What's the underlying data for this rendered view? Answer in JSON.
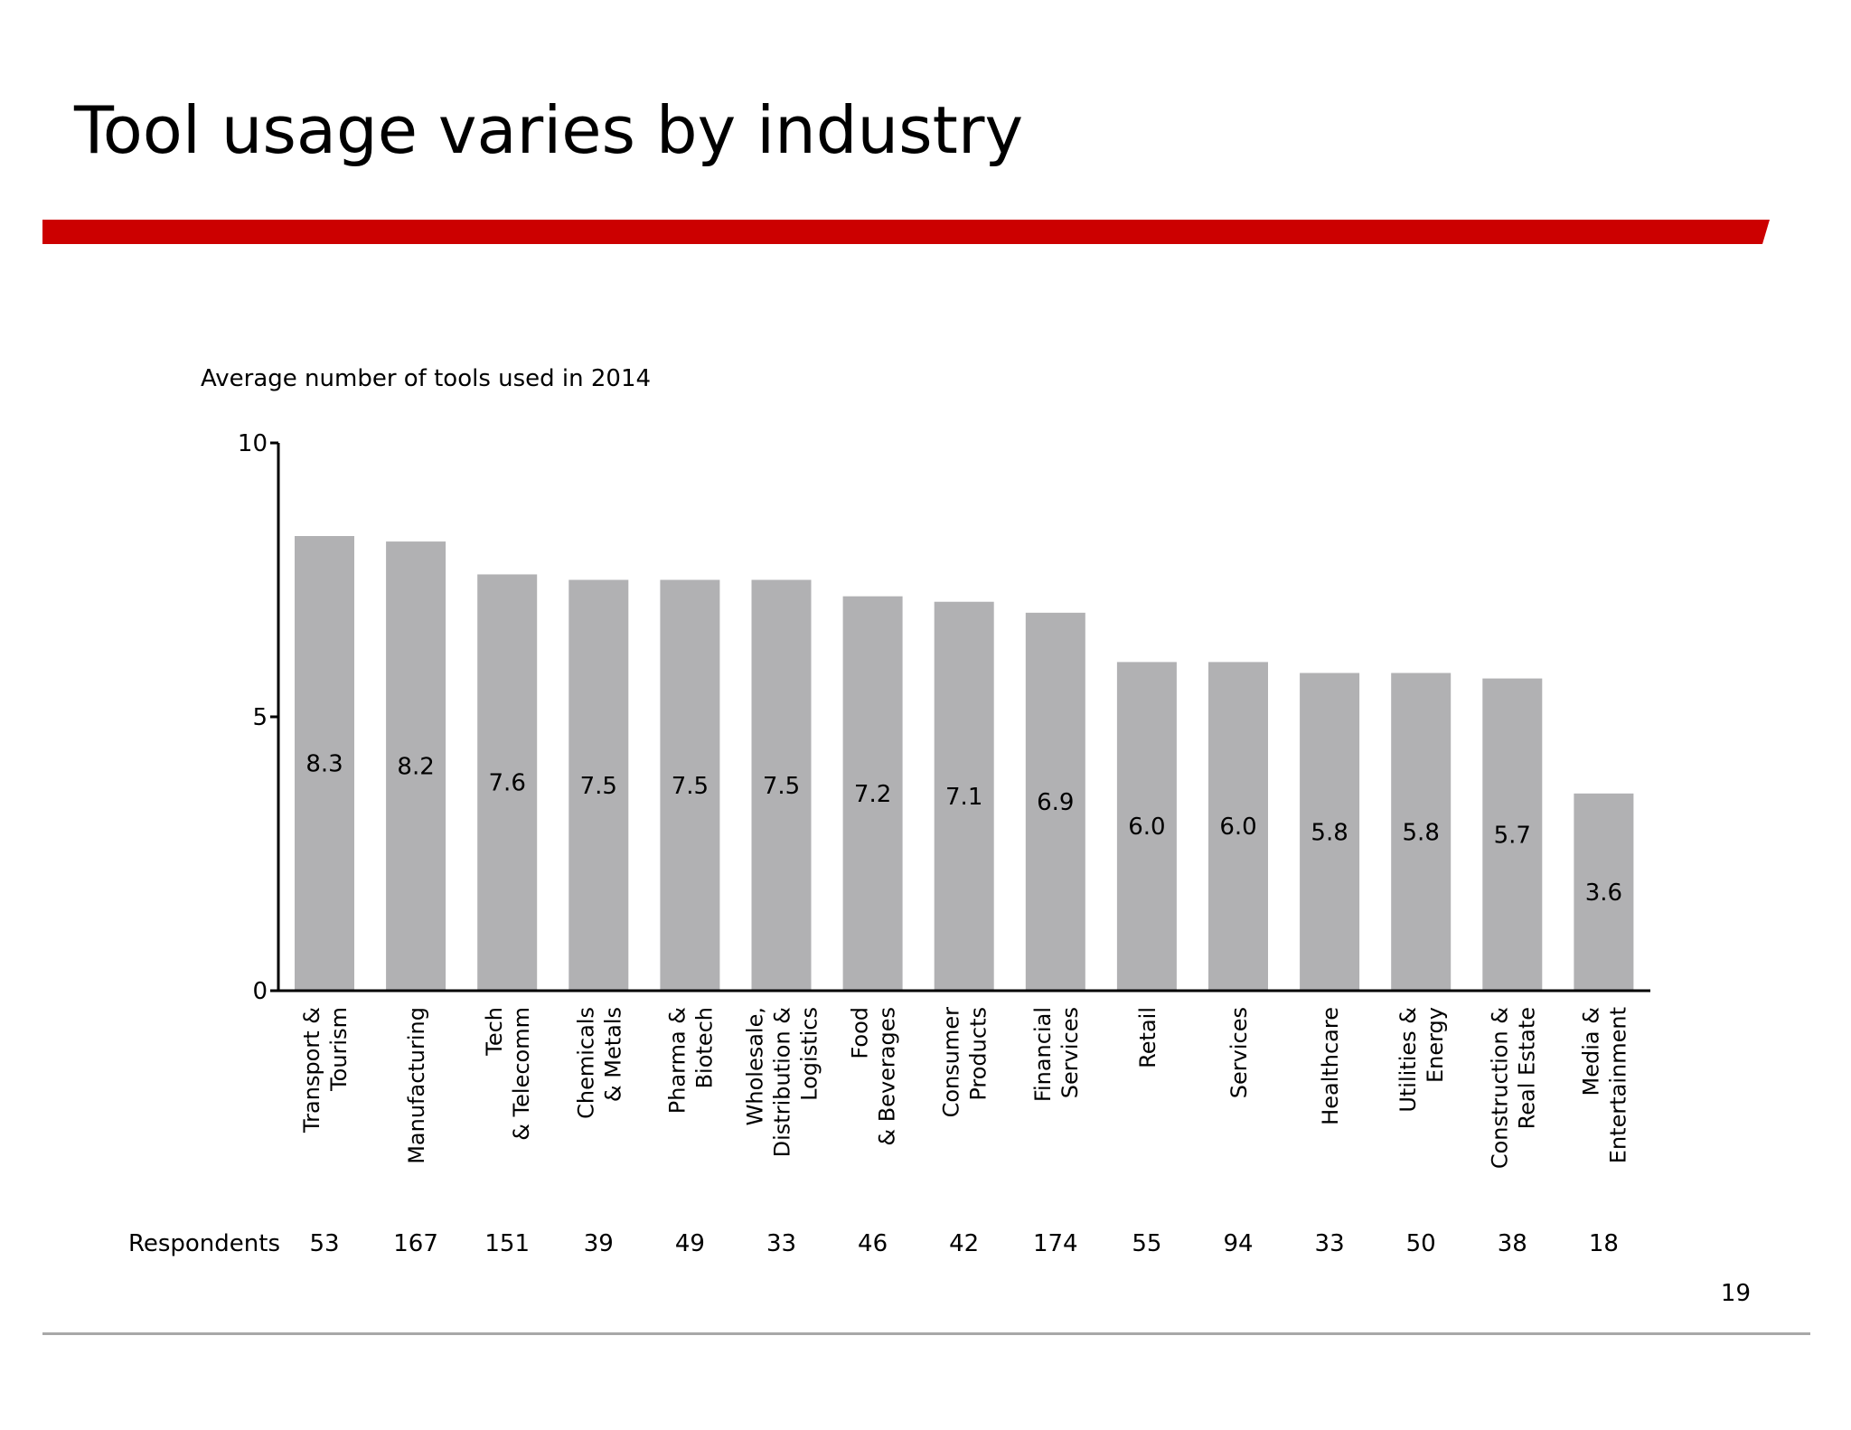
{
  "slide": {
    "title": "Tool usage varies by industry",
    "subtitle": "Average number of tools used in 2014",
    "page_number": "19",
    "accent_color": "#cc0000"
  },
  "chart_data": {
    "type": "bar",
    "title": "",
    "ylabel": "",
    "xlabel": "",
    "ylim": [
      0,
      10
    ],
    "yticks": [
      0,
      5,
      10
    ],
    "grid": false,
    "bar_color": "#b1b1b3",
    "categories": [
      [
        "Transport &",
        "Tourism"
      ],
      [
        "Manufacturing"
      ],
      [
        "Tech",
        "& Telecomm"
      ],
      [
        "Chemicals",
        "& Metals"
      ],
      [
        "Pharma &",
        "Biotech"
      ],
      [
        "Wholesale,",
        "Distribution &",
        "Logistics"
      ],
      [
        "Food",
        "& Beverages"
      ],
      [
        "Consumer",
        "Products"
      ],
      [
        "Financial",
        "Services"
      ],
      [
        "Retail"
      ],
      [
        "Services"
      ],
      [
        "Healthcare"
      ],
      [
        "Utilities &",
        "Energy"
      ],
      [
        "Construction &",
        "Real Estate"
      ],
      [
        "Media &",
        "Entertainment"
      ]
    ],
    "values": [
      8.3,
      8.2,
      7.6,
      7.5,
      7.5,
      7.5,
      7.2,
      7.1,
      6.9,
      6.0,
      6.0,
      5.8,
      5.8,
      5.7,
      3.6
    ],
    "value_labels": [
      "8.3",
      "8.2",
      "7.6",
      "7.5",
      "7.5",
      "7.5",
      "7.2",
      "7.1",
      "6.9",
      "6.0",
      "6.0",
      "5.8",
      "5.8",
      "5.7",
      "3.6"
    ],
    "respondents_label": "Respondents",
    "respondents": [
      53,
      167,
      151,
      39,
      49,
      33,
      46,
      42,
      174,
      55,
      94,
      33,
      50,
      38,
      18
    ]
  }
}
